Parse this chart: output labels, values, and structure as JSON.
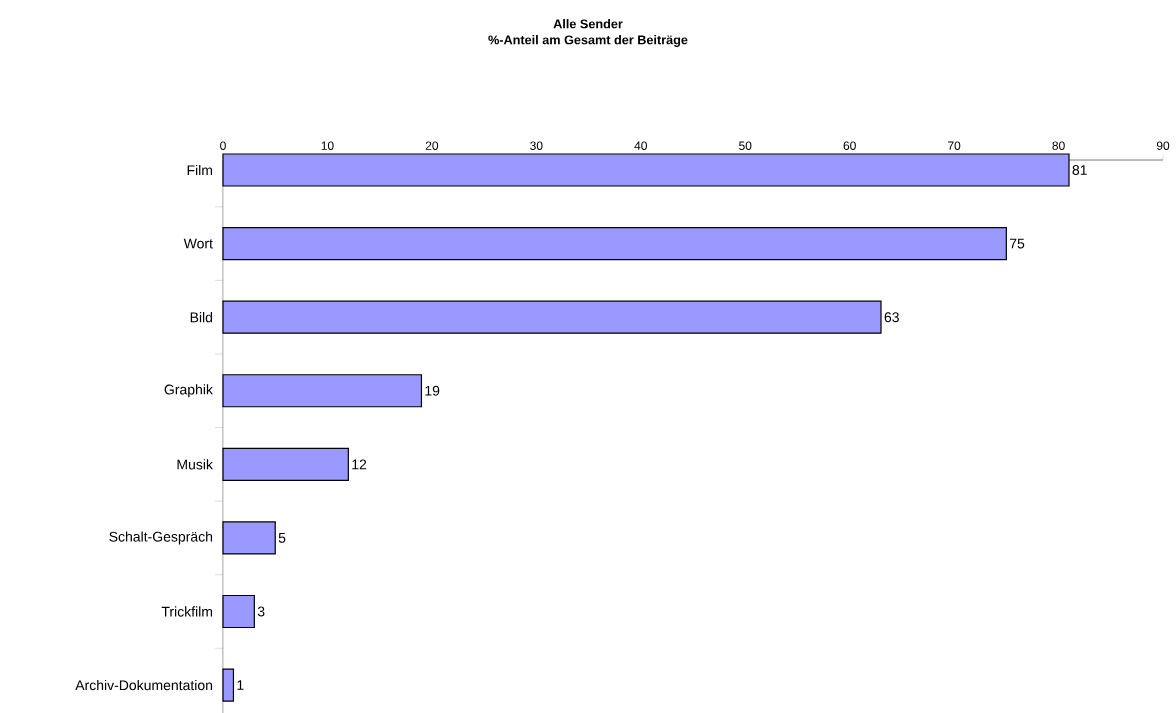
{
  "chart_data": {
    "type": "bar",
    "orientation": "horizontal",
    "title": "Alle Sender",
    "subtitle": "%-Anteil am Gesamt der Beiträge",
    "categories": [
      "Film",
      "Wort",
      "Bild",
      "Graphik",
      "Musik",
      "Schalt-Gespräch",
      "Trickfilm",
      "Archiv-Dokumentation"
    ],
    "values": [
      81,
      75,
      63,
      19,
      12,
      5,
      3,
      1
    ],
    "color": "#9999ff",
    "xlim": [
      0,
      90
    ],
    "xticks": [
      0,
      10,
      20,
      30,
      40,
      50,
      60,
      70,
      80,
      90
    ],
    "data_labels": true
  }
}
